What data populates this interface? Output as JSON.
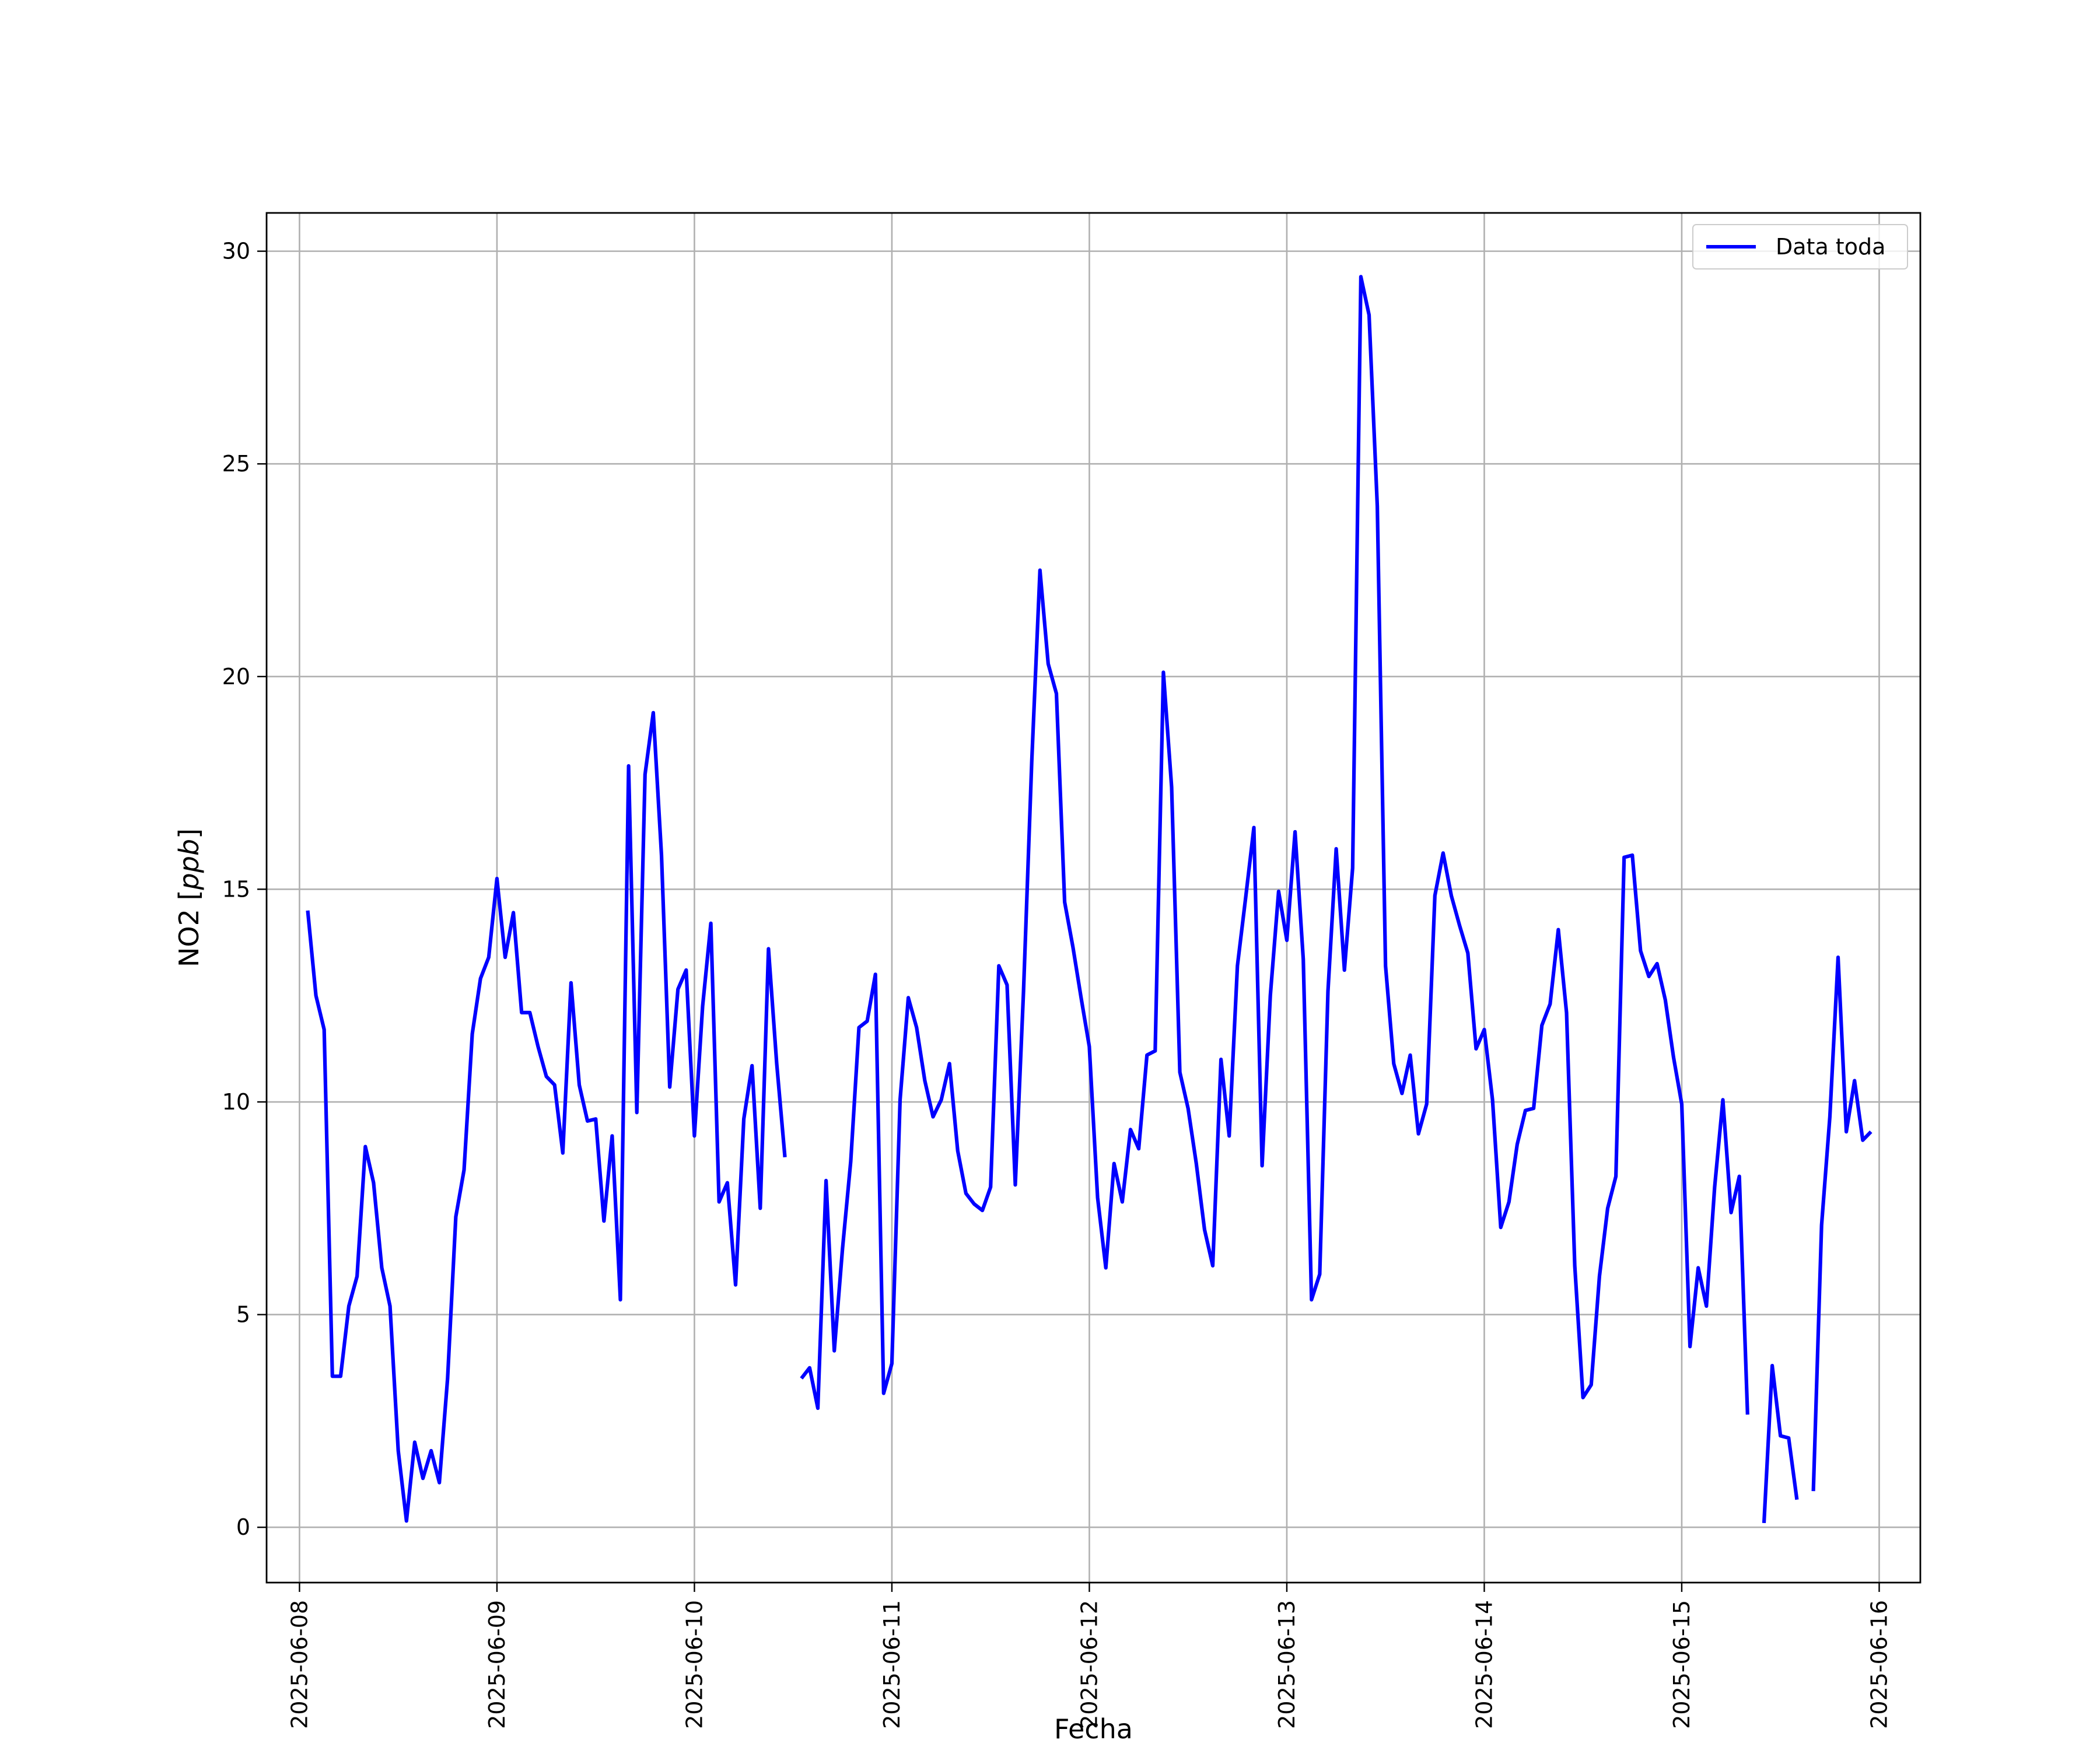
{
  "chart_data": {
    "type": "line",
    "xlabel": "Fecha",
    "ylabel_main": "NO2 [",
    "ylabel_unit": "ppb",
    "ylabel_close": "]",
    "xlim": [
      "2025-06-07T20:00",
      "2025-06-16T05:00"
    ],
    "ylim": [
      -1.3,
      30.9
    ],
    "x_ticks": [
      "2025-06-08",
      "2025-06-09",
      "2025-06-10",
      "2025-06-11",
      "2025-06-12",
      "2025-06-13",
      "2025-06-14",
      "2025-06-15",
      "2025-06-16"
    ],
    "y_ticks": [
      0,
      5,
      10,
      15,
      20,
      25,
      30
    ],
    "grid": true,
    "legend_position": "top-right",
    "series": [
      {
        "name": "Data toda",
        "color": "#0000ff",
        "start": "2025-06-08T01:00",
        "interval_hours": 1,
        "values": [
          14.5,
          12.5,
          11.7,
          3.55,
          3.55,
          5.2,
          5.9,
          8.95,
          8.1,
          6.1,
          5.2,
          1.8,
          0.15,
          2.0,
          1.15,
          1.8,
          1.05,
          3.5,
          7.3,
          8.4,
          11.6,
          12.9,
          13.4,
          15.25,
          13.4,
          14.45,
          12.1,
          12.1,
          11.3,
          10.6,
          10.4,
          8.8,
          12.8,
          10.4,
          9.55,
          9.6,
          7.2,
          9.2,
          5.35,
          17.9,
          9.75,
          17.7,
          19.15,
          15.8,
          10.35,
          12.65,
          13.1,
          9.2,
          12.25,
          14.2,
          7.65,
          8.1,
          5.7,
          9.6,
          10.85,
          7.5,
          13.6,
          10.9,
          8.7,
          null,
          3.5,
          3.75,
          2.8,
          8.15,
          4.15,
          6.55,
          8.6,
          11.75,
          11.9,
          13.0,
          3.15,
          3.85,
          10.05,
          12.45,
          11.75,
          10.5,
          9.65,
          10.05,
          10.9,
          8.85,
          7.85,
          7.6,
          7.45,
          8.0,
          13.2,
          12.75,
          8.05,
          12.6,
          18.0,
          22.5,
          20.3,
          19.6,
          14.7,
          13.65,
          12.45,
          11.3,
          7.75,
          6.1,
          8.55,
          7.65,
          9.35,
          8.9,
          11.1,
          11.2,
          20.1,
          17.4,
          10.7,
          9.85,
          8.55,
          7.0,
          6.15,
          11.0,
          9.2,
          13.2,
          14.8,
          16.45,
          8.5,
          12.5,
          14.95,
          13.8,
          16.35,
          13.35,
          5.35,
          5.95,
          12.6,
          15.95,
          13.1,
          15.5,
          29.4,
          28.5,
          24.0,
          13.2,
          10.9,
          10.2,
          11.1,
          9.25,
          9.95,
          14.85,
          15.85,
          14.85,
          14.15,
          13.5,
          11.25,
          11.7,
          10.05,
          7.05,
          7.65,
          9.0,
          9.8,
          9.85,
          11.8,
          12.3,
          14.05,
          12.1,
          6.15,
          3.05,
          3.35,
          5.9,
          7.5,
          8.25,
          15.75,
          15.8,
          13.55,
          12.95,
          13.25,
          12.4,
          11.05,
          9.95,
          4.25,
          6.1,
          5.2,
          8.0,
          10.05,
          7.4,
          8.25,
          2.65,
          null,
          0.1,
          3.8,
          2.15,
          2.1,
          0.65,
          null,
          0.85,
          7.1,
          9.65,
          13.4,
          9.3,
          10.5,
          9.1,
          9.3
        ]
      }
    ]
  }
}
